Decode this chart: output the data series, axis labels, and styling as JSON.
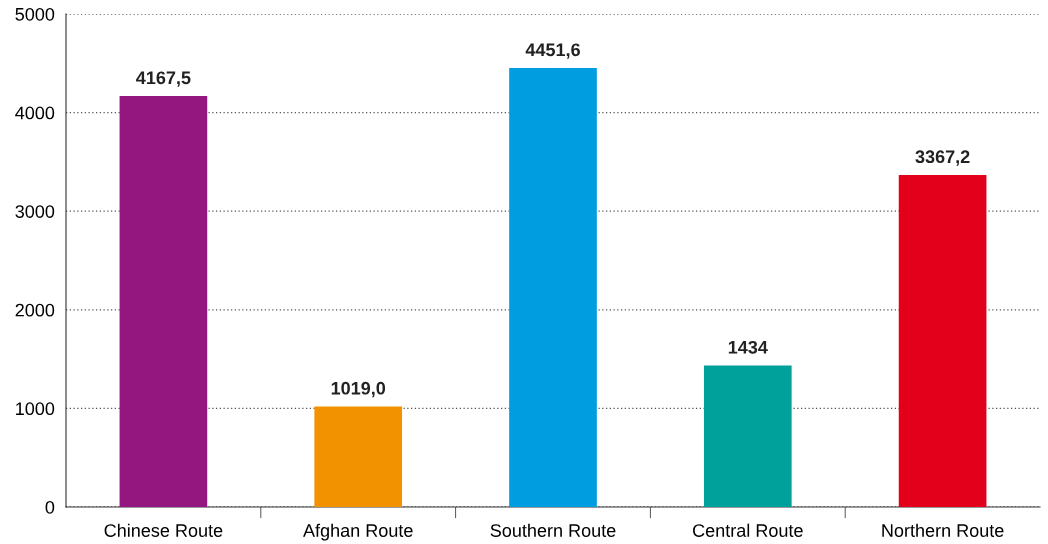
{
  "chart_data": {
    "type": "bar",
    "categories": [
      "Chinese Route",
      "Afghan Route",
      "Southern Route",
      "Central Route",
      "Northern Route"
    ],
    "values": [
      4167.5,
      1019.0,
      4451.6,
      1434,
      3367.2
    ],
    "colors": [
      "#93177e",
      "#f39200",
      "#009de0",
      "#00a19a",
      "#e2001a"
    ],
    "value_labels": [
      "4167,5",
      "1019,0",
      "4451,6",
      "1434",
      "3367,2"
    ],
    "ylim": [
      0,
      5000
    ],
    "yticks": [
      0,
      1000,
      2000,
      3000,
      4000,
      5000
    ],
    "grid": "y",
    "legend": false
  }
}
